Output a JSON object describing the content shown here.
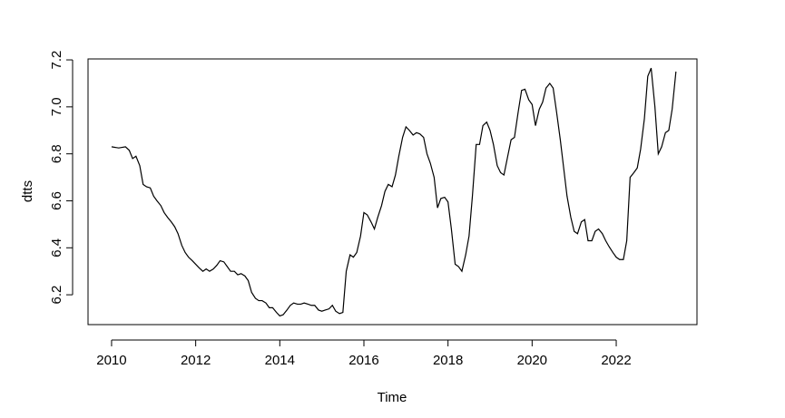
{
  "chart_data": {
    "type": "line",
    "xlabel": "Time",
    "ylabel": "dtts",
    "x": [
      2010.0,
      2010.17,
      2010.33,
      2010.42,
      2010.5,
      2010.58,
      2010.67,
      2010.75,
      2010.83,
      2010.92,
      2011.0,
      2011.08,
      2011.17,
      2011.25,
      2011.33,
      2011.42,
      2011.5,
      2011.58,
      2011.67,
      2011.75,
      2011.83,
      2011.92,
      2012.0,
      2012.08,
      2012.17,
      2012.25,
      2012.33,
      2012.42,
      2012.5,
      2012.58,
      2012.67,
      2012.75,
      2012.83,
      2012.92,
      2013.0,
      2013.08,
      2013.17,
      2013.25,
      2013.33,
      2013.42,
      2013.5,
      2013.58,
      2013.67,
      2013.75,
      2013.83,
      2013.92,
      2014.0,
      2014.08,
      2014.17,
      2014.25,
      2014.33,
      2014.42,
      2014.5,
      2014.58,
      2014.67,
      2014.75,
      2014.83,
      2014.92,
      2015.0,
      2015.08,
      2015.17,
      2015.25,
      2015.33,
      2015.42,
      2015.5,
      2015.58,
      2015.67,
      2015.75,
      2015.83,
      2015.92,
      2016.0,
      2016.08,
      2016.17,
      2016.25,
      2016.33,
      2016.42,
      2016.5,
      2016.58,
      2016.67,
      2016.75,
      2016.83,
      2016.92,
      2017.0,
      2017.08,
      2017.17,
      2017.25,
      2017.33,
      2017.42,
      2017.5,
      2017.58,
      2017.67,
      2017.75,
      2017.83,
      2017.92,
      2018.0,
      2018.08,
      2018.17,
      2018.25,
      2018.33,
      2018.42,
      2018.5,
      2018.58,
      2018.67,
      2018.75,
      2018.83,
      2018.92,
      2019.0,
      2019.08,
      2019.17,
      2019.25,
      2019.33,
      2019.42,
      2019.5,
      2019.58,
      2019.67,
      2019.75,
      2019.83,
      2019.92,
      2020.0,
      2020.08,
      2020.17,
      2020.25,
      2020.33,
      2020.42,
      2020.5,
      2020.58,
      2020.67,
      2020.75,
      2020.83,
      2020.92,
      2021.0,
      2021.08,
      2021.17,
      2021.25,
      2021.33,
      2021.42,
      2021.5,
      2021.58,
      2021.67,
      2021.75,
      2021.83,
      2021.92,
      2022.0,
      2022.08,
      2022.17,
      2022.25,
      2022.33,
      2022.42,
      2022.5,
      2022.58,
      2022.67,
      2022.75,
      2022.83,
      2022.92,
      2023.0,
      2023.08,
      2023.17,
      2023.25,
      2023.33,
      2023.42
    ],
    "values": [
      6.83,
      6.825,
      6.83,
      6.815,
      6.78,
      6.79,
      6.75,
      6.67,
      6.66,
      6.655,
      6.62,
      6.6,
      6.58,
      6.55,
      6.53,
      6.51,
      6.49,
      6.46,
      6.41,
      6.38,
      6.36,
      6.345,
      6.33,
      6.315,
      6.3,
      6.31,
      6.3,
      6.31,
      6.325,
      6.345,
      6.34,
      6.32,
      6.3,
      6.3,
      6.285,
      6.29,
      6.28,
      6.26,
      6.21,
      6.185,
      6.175,
      6.175,
      6.165,
      6.145,
      6.145,
      6.125,
      6.11,
      6.115,
      6.135,
      6.155,
      6.165,
      6.16,
      6.16,
      6.165,
      6.16,
      6.155,
      6.155,
      6.135,
      6.13,
      6.135,
      6.14,
      6.155,
      6.13,
      6.12,
      6.125,
      6.3,
      6.37,
      6.36,
      6.38,
      6.45,
      6.55,
      6.54,
      6.51,
      6.48,
      6.53,
      6.58,
      6.64,
      6.67,
      6.66,
      6.71,
      6.79,
      6.87,
      6.915,
      6.9,
      6.88,
      6.89,
      6.885,
      6.87,
      6.8,
      6.76,
      6.7,
      6.57,
      6.61,
      6.615,
      6.595,
      6.48,
      6.33,
      6.32,
      6.3,
      6.37,
      6.45,
      6.62,
      6.84,
      6.84,
      6.92,
      6.935,
      6.9,
      6.84,
      6.75,
      6.72,
      6.71,
      6.79,
      6.86,
      6.87,
      6.98,
      7.07,
      7.075,
      7.03,
      7.01,
      6.92,
      6.99,
      7.02,
      7.08,
      7.1,
      7.08,
      6.98,
      6.86,
      6.74,
      6.62,
      6.53,
      6.47,
      6.46,
      6.51,
      6.52,
      6.43,
      6.43,
      6.47,
      6.48,
      6.46,
      6.43,
      6.405,
      6.38,
      6.36,
      6.35,
      6.35,
      6.43,
      6.7,
      6.72,
      6.74,
      6.82,
      6.95,
      7.13,
      7.165,
      7.0,
      6.8,
      6.83,
      6.89,
      6.9,
      6.99,
      7.15
    ],
    "color": "#000000",
    "xlim": [
      2009.44,
      2023.92
    ],
    "xticks": [
      2010,
      2012,
      2014,
      2016,
      2018,
      2020,
      2022
    ],
    "ylim": [
      6.073,
      7.204
    ],
    "yticks": [
      6.2,
      6.4,
      6.6,
      6.8,
      {
        "value": 7,
        "label": "7.0"
      },
      7.2
    ]
  }
}
